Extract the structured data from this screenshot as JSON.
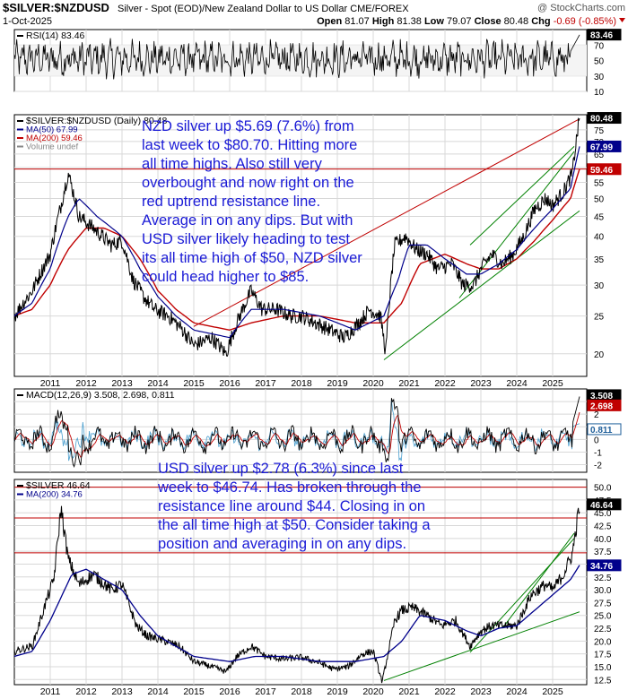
{
  "header": {
    "symbol": "$SILVER:$NZDUSD",
    "description": "Silver - Spot (EOD)/New Zealand Dollar to US Dollar  CME/FOREX",
    "date": "1-Oct-2025",
    "open_label": "Open",
    "open": "81.07",
    "high_label": "High",
    "high": "81.38",
    "low_label": "Low",
    "low": "79.07",
    "close_label": "Close",
    "close": "80.48",
    "chg_label": "Chg",
    "chg": "-0.69 (-0.85%)",
    "watermark": "@ StockCharts.com"
  },
  "colors": {
    "price": "#000000",
    "ma_blue": "#00008b",
    "ma_red": "#c00000",
    "annotation": "#1a1ad6",
    "resistance": "#c00000",
    "support": "#008000",
    "macd_signal": "#c00000",
    "macd_hist": "#4a9fcf"
  },
  "annotations": {
    "nzd": [
      "NZD silver up $5.69 (7.6%) from",
      "last week to $80.70. Hitting more",
      "all time highs. Also still very",
      "overbought and now right on the",
      "red uptrend resistance line.",
      "Average in on any dips. But with",
      "USD silver likely heading to test",
      "its all time high of $50, NZD silver",
      "could head higher to $85."
    ],
    "usd": [
      "USD silver up $2.78 (6.3%) since last",
      "week to $46.74. Has broken through the",
      "resistance line around $44. Closing in on",
      "the all time high at $50. Consider taking a",
      "position and averaging in on any dips."
    ]
  },
  "chart_data": [
    {
      "type": "line",
      "panel": "rsi",
      "legend": [
        "RSI(14) 83.46"
      ],
      "last_value": "83.46",
      "ylim": [
        10,
        90
      ],
      "y_ticks": [
        {
          "v": 70,
          "label": "70"
        },
        {
          "v": 50,
          "label": "50"
        },
        {
          "v": 30,
          "label": "30"
        },
        {
          "v": 10,
          "label": "10"
        }
      ]
    },
    {
      "type": "line",
      "panel": "nzd_price",
      "scale": "log",
      "legend": [
        "$SILVER:$NZDUSD (Daily) 80.48",
        "MA(50) 67.99",
        "MA(200) 59.46",
        "Volume undef"
      ],
      "ylim": [
        17.5,
        82
      ],
      "y_ticks": [
        {
          "v": 75,
          "label": "75"
        },
        {
          "v": 70,
          "label": "70"
        },
        {
          "v": 65,
          "label": "65"
        },
        {
          "v": 60,
          "label": "60"
        },
        {
          "v": 55,
          "label": "55"
        },
        {
          "v": 50,
          "label": "50"
        },
        {
          "v": 45,
          "label": "45"
        },
        {
          "v": 40,
          "label": "40"
        },
        {
          "v": 35,
          "label": "35"
        },
        {
          "v": 30,
          "label": "30"
        },
        {
          "v": 25,
          "label": "25"
        },
        {
          "v": 20,
          "label": "20"
        }
      ],
      "tags": [
        {
          "v": 80.48,
          "label": "80.48",
          "style": "black"
        },
        {
          "v": 67.99,
          "label": "67.99",
          "style": "blue"
        },
        {
          "v": 59.46,
          "label": "59.46",
          "style": "red"
        }
      ],
      "series": [
        {
          "role": "price",
          "x": [
            2010.0,
            2010.5,
            2011.0,
            2011.3,
            2011.5,
            2011.8,
            2012.2,
            2012.7,
            2013.0,
            2013.3,
            2013.6,
            2013.9,
            2014.3,
            2014.7,
            2015.0,
            2015.5,
            2015.9,
            2016.2,
            2016.6,
            2016.9,
            2017.3,
            2017.7,
            2018.0,
            2018.4,
            2018.8,
            2019.2,
            2019.6,
            2019.9,
            2020.2,
            2020.35,
            2020.6,
            2020.9,
            2021.2,
            2021.5,
            2021.8,
            2022.2,
            2022.5,
            2022.8,
            2023.0,
            2023.3,
            2023.6,
            2023.9,
            2024.2,
            2024.5,
            2024.8,
            2025.0,
            2025.3,
            2025.55,
            2025.75
          ],
          "y": [
            25,
            29,
            36,
            48,
            58,
            45,
            42,
            38,
            39,
            31,
            28,
            26,
            25,
            23,
            21,
            22,
            20,
            24,
            29,
            26,
            26,
            25,
            25,
            24,
            23,
            22,
            24,
            26,
            25,
            20,
            38,
            40,
            37,
            36,
            33,
            34,
            30,
            30,
            33,
            36,
            34,
            36,
            40,
            47,
            50,
            48,
            52,
            58,
            80.5
          ]
        },
        {
          "role": "ma50",
          "x": [
            2010.0,
            2010.5,
            2011.0,
            2011.5,
            2011.8,
            2012.3,
            2013.0,
            2013.5,
            2014.0,
            2014.5,
            2015.0,
            2016.0,
            2016.6,
            2017.5,
            2018.5,
            2019.5,
            2020.3,
            2020.7,
            2021.0,
            2021.5,
            2022.0,
            2022.6,
            2023.0,
            2023.5,
            2024.0,
            2024.5,
            2025.0,
            2025.5,
            2025.75
          ],
          "y": [
            25,
            27,
            33,
            45,
            50,
            45,
            40,
            33,
            28,
            25,
            23,
            22,
            26,
            26,
            25,
            23,
            25,
            31,
            38,
            38,
            35,
            32,
            32,
            34,
            37,
            42,
            47,
            53,
            68
          ]
        },
        {
          "role": "ma200",
          "x": [
            2010.0,
            2010.5,
            2011.0,
            2011.5,
            2012.0,
            2012.5,
            2013.0,
            2013.5,
            2014.0,
            2014.5,
            2015.0,
            2016.0,
            2016.6,
            2017.5,
            2018.5,
            2019.5,
            2020.3,
            2020.8,
            2021.3,
            2022.0,
            2022.6,
            2023.0,
            2023.5,
            2024.0,
            2024.5,
            2025.0,
            2025.5,
            2025.75
          ],
          "y": [
            25,
            26,
            30,
            37,
            42,
            42,
            40,
            35,
            29,
            26,
            24,
            23,
            24,
            25,
            25,
            24,
            24,
            27,
            34,
            36,
            34,
            33,
            33,
            35,
            39,
            44,
            50,
            59.5
          ]
        }
      ],
      "lines": [
        {
          "role": "horizontal",
          "color": "#c00000",
          "y": 59.5
        },
        {
          "role": "resistance",
          "color": "#c00000",
          "x": [
            2015.0,
            2025.75
          ],
          "y": [
            23.5,
            80
          ]
        },
        {
          "role": "support",
          "color": "#008000",
          "x": [
            2020.3,
            2025.75
          ],
          "y": [
            19.3,
            46.5
          ]
        },
        {
          "role": "channel",
          "color": "#008000",
          "x": [
            2022.4,
            2025.6
          ],
          "y": [
            27.8,
            66
          ]
        },
        {
          "role": "channel",
          "color": "#008000",
          "x": [
            2022.7,
            2025.6
          ],
          "y": [
            38,
            68
          ]
        }
      ]
    },
    {
      "type": "line",
      "panel": "macd",
      "legend": [
        "MACD(12,26,9) 3.508, 2.698, 0.811"
      ],
      "ylim": [
        -2.6,
        4.0
      ],
      "y_ticks": [
        {
          "v": 3,
          "label": "3"
        },
        {
          "v": 2,
          "label": "2"
        },
        {
          "v": 1,
          "label": "1"
        },
        {
          "v": 0,
          "label": "0"
        },
        {
          "v": -1,
          "label": "-1"
        },
        {
          "v": -2,
          "label": "-2"
        }
      ],
      "tags": [
        {
          "v": 3.508,
          "label": "3.508",
          "style": "black"
        },
        {
          "v": 2.698,
          "label": "2.698",
          "style": "red"
        },
        {
          "v": 0.811,
          "label": "0.811",
          "style": "hist"
        }
      ]
    },
    {
      "type": "line",
      "panel": "usd_price",
      "legend": [
        "$SILVER 46.64",
        "MA(200) 34.76"
      ],
      "ylim": [
        11.5,
        51.5
      ],
      "y_ticks": [
        {
          "v": 50.0,
          "label": "50.0"
        },
        {
          "v": 47.5,
          "label": "47.5"
        },
        {
          "v": 45.0,
          "label": "45.0"
        },
        {
          "v": 42.5,
          "label": "42.5"
        },
        {
          "v": 40.0,
          "label": "40.0"
        },
        {
          "v": 37.5,
          "label": "37.5"
        },
        {
          "v": 35.0,
          "label": "35.0"
        },
        {
          "v": 32.5,
          "label": "32.5"
        },
        {
          "v": 30.0,
          "label": "30.0"
        },
        {
          "v": 27.5,
          "label": "27.5"
        },
        {
          "v": 25.0,
          "label": "25.0"
        },
        {
          "v": 22.5,
          "label": "22.5"
        },
        {
          "v": 20.0,
          "label": "20.0"
        },
        {
          "v": 17.5,
          "label": "17.5"
        },
        {
          "v": 15.0,
          "label": "15.0"
        },
        {
          "v": 12.5,
          "label": "12.5"
        }
      ],
      "tags": [
        {
          "v": 46.64,
          "label": "46.64",
          "style": "black"
        },
        {
          "v": 34.76,
          "label": "34.76",
          "style": "blue"
        }
      ],
      "series": [
        {
          "role": "price",
          "x": [
            2010.0,
            2010.5,
            2010.9,
            2011.1,
            2011.3,
            2011.5,
            2011.8,
            2012.2,
            2012.7,
            2013.0,
            2013.4,
            2013.7,
            2014.2,
            2014.6,
            2015.0,
            2015.5,
            2015.9,
            2016.2,
            2016.6,
            2017.0,
            2017.5,
            2018.0,
            2018.5,
            2018.9,
            2019.3,
            2019.7,
            2020.0,
            2020.25,
            2020.6,
            2020.8,
            2021.1,
            2021.5,
            2021.9,
            2022.3,
            2022.7,
            2023.0,
            2023.3,
            2023.6,
            2024.0,
            2024.4,
            2024.8,
            2025.0,
            2025.3,
            2025.55,
            2025.75
          ],
          "y": [
            18,
            19,
            28,
            32,
            46,
            36,
            31,
            33,
            30,
            31,
            23,
            21,
            20,
            19,
            16,
            15,
            14,
            17,
            19,
            17,
            16.5,
            16.8,
            15.8,
            14.5,
            15,
            17.5,
            18,
            12,
            24,
            26,
            26.5,
            25,
            23,
            24,
            19,
            22,
            23,
            23,
            23,
            29,
            31,
            30,
            33,
            37,
            46.6
          ]
        },
        {
          "role": "ma200",
          "x": [
            2010.0,
            2010.5,
            2011.0,
            2011.6,
            2012.0,
            2012.5,
            2013.0,
            2013.5,
            2014.0,
            2014.5,
            2015.0,
            2016.0,
            2016.7,
            2017.5,
            2018.5,
            2019.5,
            2020.3,
            2020.8,
            2021.3,
            2022.0,
            2022.6,
            2023.0,
            2023.5,
            2024.0,
            2024.5,
            2025.0,
            2025.5,
            2025.75
          ],
          "y": [
            17,
            18,
            24,
            33,
            34,
            32,
            30,
            25,
            21,
            19,
            17,
            16,
            17,
            17,
            16,
            16,
            17,
            20,
            25,
            24,
            22,
            21,
            22.5,
            23,
            26,
            29,
            32,
            34.8
          ]
        }
      ],
      "lines": [
        {
          "role": "horizontal",
          "color": "#c00000",
          "y": 50.0
        },
        {
          "role": "horizontal",
          "color": "#c00000",
          "y": 44.0
        },
        {
          "role": "horizontal",
          "color": "#c00000",
          "y": 37.2
        },
        {
          "role": "support",
          "color": "#008000",
          "x": [
            2020.3,
            2025.75
          ],
          "y": [
            12.3,
            25.7
          ]
        },
        {
          "role": "channel",
          "color": "#008000",
          "x": [
            2022.7,
            2025.6
          ],
          "y": [
            17.8,
            40
          ]
        },
        {
          "role": "channel",
          "color": "#008000",
          "x": [
            2023.6,
            2025.6
          ],
          "y": [
            22.5,
            41
          ]
        }
      ]
    }
  ],
  "x_axis": {
    "xlim": [
      2010.0,
      2025.95
    ],
    "ticks": [
      {
        "v": 2011,
        "label": "2011"
      },
      {
        "v": 2012,
        "label": "2012"
      },
      {
        "v": 2013,
        "label": "2013"
      },
      {
        "v": 2014,
        "label": "2014"
      },
      {
        "v": 2015,
        "label": "2015"
      },
      {
        "v": 2016,
        "label": "2016"
      },
      {
        "v": 2017,
        "label": "2017"
      },
      {
        "v": 2018,
        "label": "2018"
      },
      {
        "v": 2019,
        "label": "2019"
      },
      {
        "v": 2020,
        "label": "2020"
      },
      {
        "v": 2021,
        "label": "2021"
      },
      {
        "v": 2022,
        "label": "2022"
      },
      {
        "v": 2023,
        "label": "2023"
      },
      {
        "v": 2024,
        "label": "2024"
      },
      {
        "v": 2025,
        "label": "2025"
      }
    ]
  }
}
